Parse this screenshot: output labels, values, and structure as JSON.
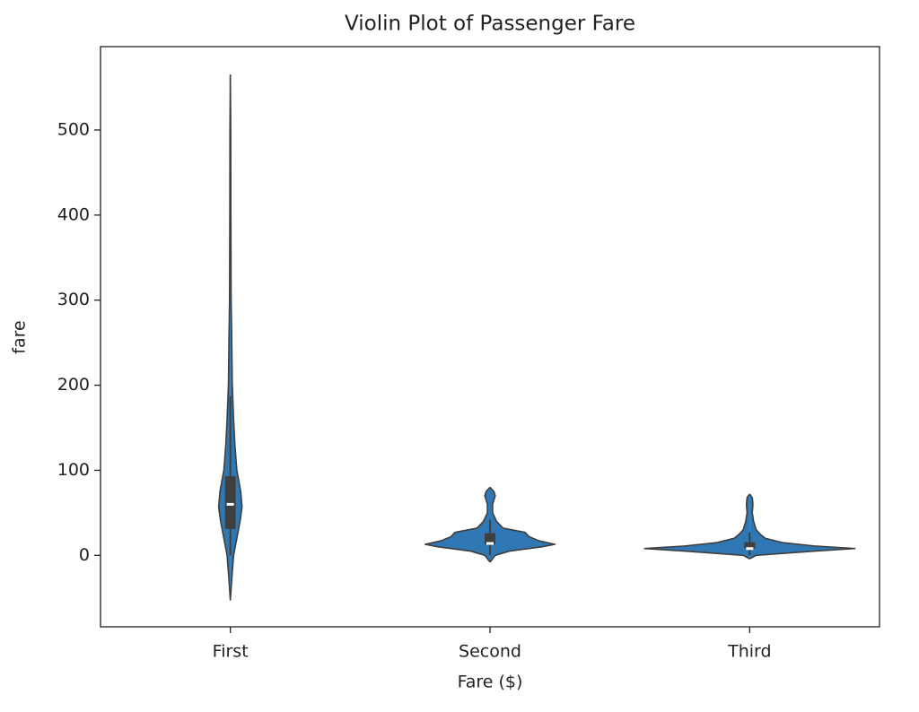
{
  "chart_data": {
    "type": "violin",
    "title": "Violin Plot of Passenger Fare",
    "x_label": "Fare ($)",
    "y_label": "fare",
    "categories": [
      "First",
      "Second",
      "Third"
    ],
    "color": "#2f78b3",
    "edge_color": "#3f3f3f",
    "ylim": [
      -84,
      598
    ],
    "yticks": [
      0,
      100,
      200,
      300,
      400,
      500
    ],
    "violins": [
      {
        "levels": [
          -53,
          -30,
          0,
          20,
          40,
          57,
          75,
          100,
          130,
          160,
          200,
          260,
          300,
          400,
          500,
          565
        ],
        "density": [
          0,
          0.01,
          0.025,
          0.05,
          0.075,
          0.09,
          0.08,
          0.05,
          0.035,
          0.025,
          0.015,
          0.01,
          0.006,
          0.004,
          0.003,
          0
        ],
        "whisker": [
          0,
          187
        ],
        "box": [
          31,
          93
        ],
        "median": 60
      },
      {
        "levels": [
          -8,
          0,
          5,
          10,
          13,
          17,
          22,
          27,
          32,
          40,
          50,
          60,
          70,
          75,
          80
        ],
        "density": [
          0,
          0.04,
          0.15,
          0.4,
          0.5,
          0.38,
          0.3,
          0.27,
          0.1,
          0.05,
          0.02,
          0.02,
          0.04,
          0.03,
          0
        ],
        "whisker": [
          0,
          42
        ],
        "box": [
          13,
          26
        ],
        "median": 14
      },
      {
        "levels": [
          -4,
          0,
          5,
          8,
          11,
          15,
          20,
          25,
          30,
          40,
          50,
          60,
          68,
          72
        ],
        "density": [
          0,
          0.05,
          0.5,
          0.81,
          0.5,
          0.25,
          0.12,
          0.08,
          0.05,
          0.03,
          0.02,
          0.025,
          0.02,
          0
        ],
        "whisker": [
          0,
          27
        ],
        "box": [
          7.75,
          15.5
        ],
        "median": 8
      }
    ]
  }
}
